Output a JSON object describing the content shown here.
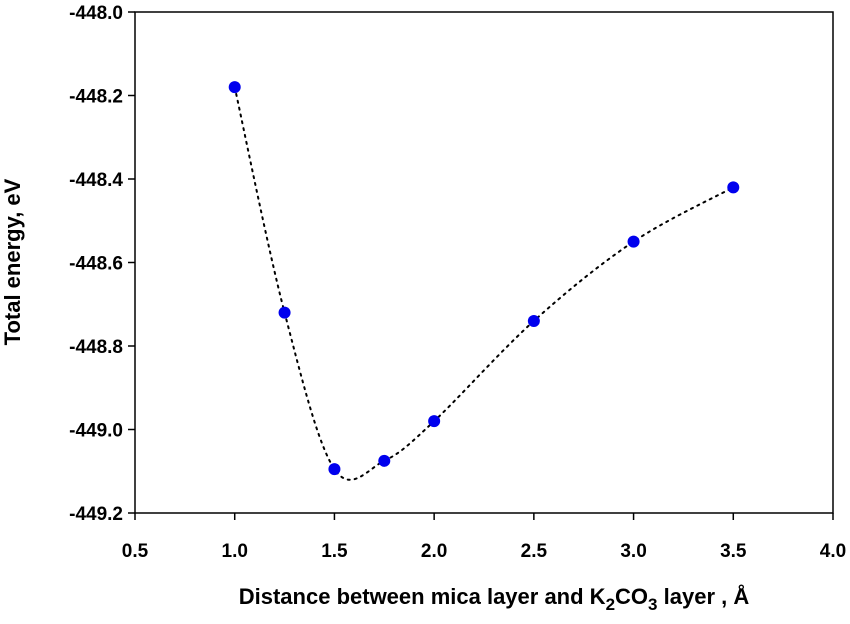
{
  "chart_data": {
    "type": "scatter",
    "title": "",
    "xlabel": {
      "prefix": "Distance between mica layer and K",
      "sub1": "2",
      "middle": "CO",
      "sub2": "3",
      "suffix": " layer , Å"
    },
    "ylabel": "Total energy, eV",
    "xlim": [
      0.5,
      4.0
    ],
    "ylim": [
      -449.2,
      -448.0
    ],
    "x_ticks": [
      0.5,
      1.0,
      1.5,
      2.0,
      2.5,
      3.0,
      3.5,
      4.0
    ],
    "x_tick_labels": [
      "0.5",
      "1.0",
      "1.5",
      "2.0",
      "2.5",
      "3.0",
      "3.5",
      "4.0"
    ],
    "y_ticks": [
      -448.0,
      -448.2,
      -448.4,
      -448.6,
      -448.8,
      -449.0,
      -449.2
    ],
    "y_tick_labels": [
      "-448.0",
      "-448.2",
      "-448.4",
      "-448.6",
      "-448.8",
      "-449.0",
      "-449.2"
    ],
    "series": [
      {
        "marker_color": "#0000ee",
        "line_style": "dotted",
        "x": [
          1.0,
          1.25,
          1.5,
          1.75,
          2.0,
          2.5,
          3.0,
          3.5
        ],
        "y": [
          -448.18,
          -448.72,
          -449.095,
          -449.075,
          -448.98,
          -448.74,
          -448.55,
          -448.42
        ]
      }
    ],
    "grid": false,
    "legend": "none"
  }
}
